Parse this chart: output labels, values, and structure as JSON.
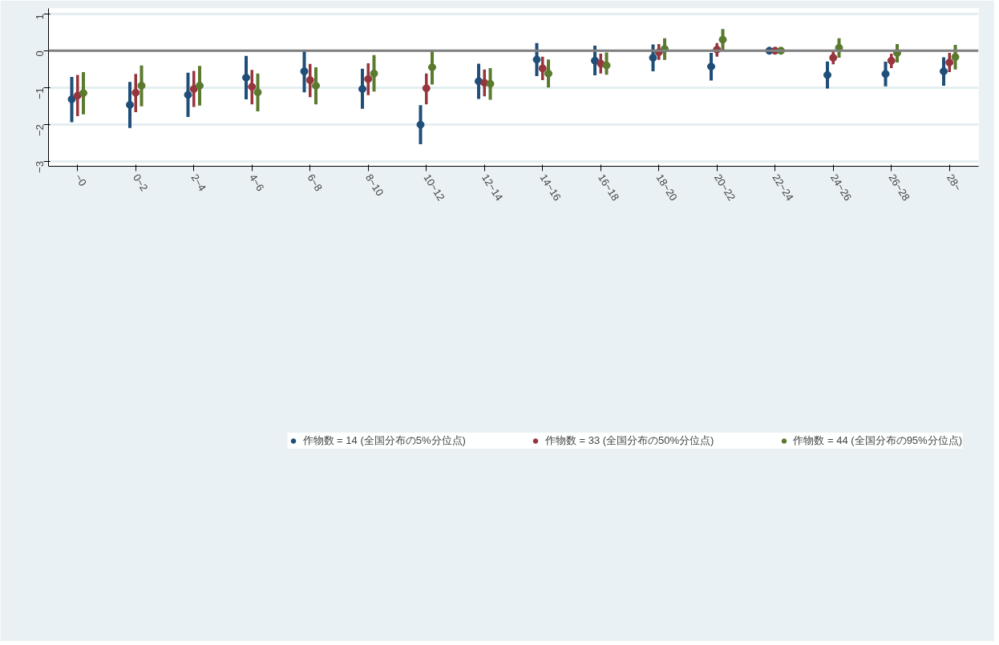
{
  "chart_data": {
    "type": "scatter",
    "categories": [
      "~0",
      "0~2",
      "2~4",
      "4~6",
      "6~8",
      "8~10",
      "10~12",
      "12~14",
      "14~16",
      "16~18",
      "18~20",
      "20~22",
      "22~24",
      "24~26",
      "26~28",
      "28~"
    ],
    "series": [
      {
        "name": "作物数 = 14 (全国分布の5%分位点)",
        "color": "#1f4e79",
        "values": [
          -1.32,
          -1.47,
          -1.2,
          -0.73,
          -0.56,
          -1.04,
          -2.01,
          -0.83,
          -0.24,
          -0.27,
          -0.19,
          -0.43,
          0,
          -0.66,
          -0.63,
          -0.56
        ],
        "errors": [
          [
            -1.94,
            -0.71
          ],
          [
            -2.1,
            -0.85
          ],
          [
            -1.8,
            -0.6
          ],
          [
            -1.32,
            -0.14
          ],
          [
            -1.13,
            0
          ],
          [
            -1.58,
            -0.49
          ],
          [
            -2.54,
            -1.48
          ],
          [
            -1.31,
            -0.35
          ],
          [
            -0.69,
            0.21
          ],
          [
            -0.67,
            0.14
          ],
          [
            -0.56,
            0.17
          ],
          [
            -0.81,
            -0.06
          ],
          null,
          [
            -1.03,
            -0.29
          ],
          [
            -0.97,
            -0.3
          ],
          [
            -0.95,
            -0.18
          ]
        ]
      },
      {
        "name": "作物数 = 33 (全国分布の50%分位点)",
        "color": "#96353c",
        "values": [
          -1.22,
          -1.14,
          -1.04,
          -0.98,
          -0.8,
          -0.77,
          -1.02,
          -0.87,
          -0.48,
          -0.35,
          -0.04,
          0.03,
          0,
          -0.19,
          -0.27,
          -0.32
        ],
        "errors": [
          [
            -1.78,
            -0.66
          ],
          [
            -1.67,
            -0.63
          ],
          [
            -1.53,
            -0.55
          ],
          [
            -1.46,
            -0.52
          ],
          [
            -1.26,
            -0.36
          ],
          [
            -1.21,
            -0.34
          ],
          [
            -1.46,
            -0.62
          ],
          [
            -1.24,
            -0.51
          ],
          [
            -0.8,
            -0.16
          ],
          [
            -0.62,
            -0.08
          ],
          [
            -0.25,
            0.18
          ],
          [
            -0.16,
            0.21
          ],
          null,
          [
            -0.37,
            -0.01
          ],
          [
            -0.47,
            -0.08
          ],
          [
            -0.58,
            -0.06
          ]
        ]
      },
      {
        "name": "作物数 = 44 (全国分布の95%分位点)",
        "color": "#5a7a2e",
        "values": [
          -1.15,
          -0.95,
          -0.95,
          -1.13,
          -0.95,
          -0.62,
          -0.45,
          -0.9,
          -0.62,
          -0.4,
          0.05,
          0.3,
          0,
          0.08,
          -0.06,
          -0.17
        ],
        "errors": [
          [
            -1.73,
            -0.58
          ],
          [
            -1.51,
            -0.4
          ],
          [
            -1.49,
            -0.41
          ],
          [
            -1.65,
            -0.62
          ],
          [
            -1.46,
            -0.45
          ],
          [
            -1.11,
            -0.12
          ],
          [
            -0.92,
            0.01
          ],
          [
            -1.33,
            -0.47
          ],
          [
            -1.0,
            -0.24
          ],
          [
            -0.65,
            -0.05
          ],
          [
            -0.25,
            0.34
          ],
          [
            0.0,
            0.59
          ],
          null,
          [
            -0.19,
            0.34
          ],
          [
            -0.32,
            0.18
          ],
          [
            -0.51,
            0.16
          ]
        ]
      }
    ],
    "ylim": [
      -3.14,
      1.15
    ],
    "yticks": [
      -3,
      -2,
      -1,
      0,
      1
    ],
    "ref_lines": [
      {
        "axis": "y",
        "value": 0,
        "color": "#808080"
      }
    ],
    "grid": "y",
    "legend": "bottom",
    "marker": "circle"
  }
}
